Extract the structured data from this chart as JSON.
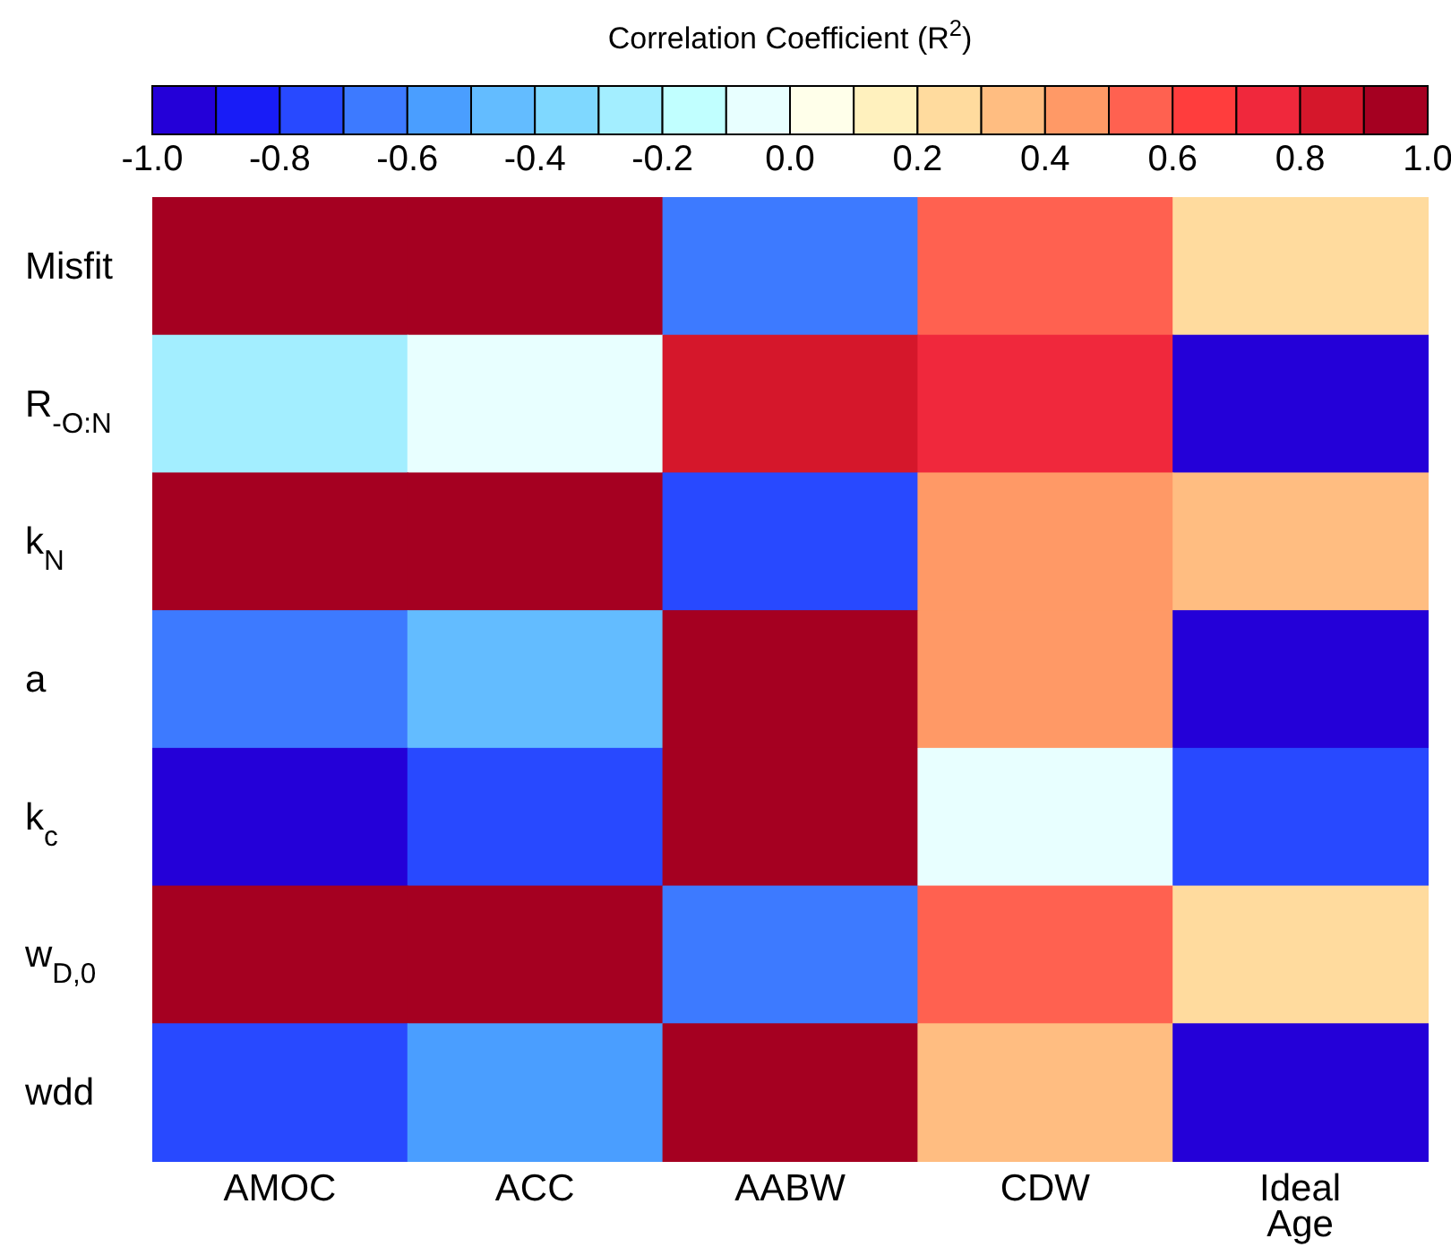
{
  "chart_data": {
    "type": "heatmap",
    "clabel": "Correlation Coefficient (R$^{2}$)",
    "categories": [
      "AMOC",
      "ACC",
      "AABW",
      "CDW",
      "Ideal Age"
    ],
    "y_categories": [
      "Misfit",
      "R$_{-O:N}$",
      "k$_{N}$",
      "a",
      "k$_{c}$",
      "w$_{D,0}$",
      "wdd"
    ],
    "cells": [
      [
        0.95,
        0.95,
        -0.65,
        0.55,
        0.25
      ],
      [
        -0.25,
        -0.05,
        0.85,
        0.75,
        -0.95
      ],
      [
        0.95,
        0.95,
        -0.75,
        0.45,
        0.35
      ],
      [
        -0.65,
        -0.45,
        0.95,
        0.45,
        -0.95
      ],
      [
        -0.95,
        -0.75,
        0.95,
        -0.05,
        -0.75
      ],
      [
        0.95,
        0.95,
        -0.65,
        0.55,
        0.25
      ],
      [
        -0.75,
        -0.55,
        0.95,
        0.35,
        -0.95
      ]
    ],
    "colors": [
      "#2400d8",
      "#181cf7",
      "#2849ff",
      "#3d7aff",
      "#4a9eff",
      "#63bcff",
      "#7fd8ff",
      "#a3eeff",
      "#c1ffff",
      "#e8ffff",
      "#ffffea",
      "#fff1be",
      "#ffdb9e",
      "#ffbd81",
      "#ff9966",
      "#ff6150",
      "#ff3d3d",
      "#f0283c",
      "#d5172b",
      "#a50021"
    ],
    "clim": [
      -1,
      1
    ],
    "cticks": [
      {
        "value": -1,
        "label": "-1.0"
      },
      {
        "value": -0.8,
        "label": "-0.8"
      },
      {
        "value": -0.6,
        "label": "-0.6"
      },
      {
        "value": -0.4,
        "label": "-0.4"
      },
      {
        "value": -0.2,
        "label": "-0.2"
      },
      {
        "value": 0,
        "label": "0.0"
      },
      {
        "value": 0.2,
        "label": "0.2"
      },
      {
        "value": 0.4,
        "label": "0.4"
      },
      {
        "value": 0.6,
        "label": "0.6"
      },
      {
        "value": 0.8,
        "label": "0.8"
      },
      {
        "value": 1,
        "label": "1.0"
      }
    ]
  }
}
